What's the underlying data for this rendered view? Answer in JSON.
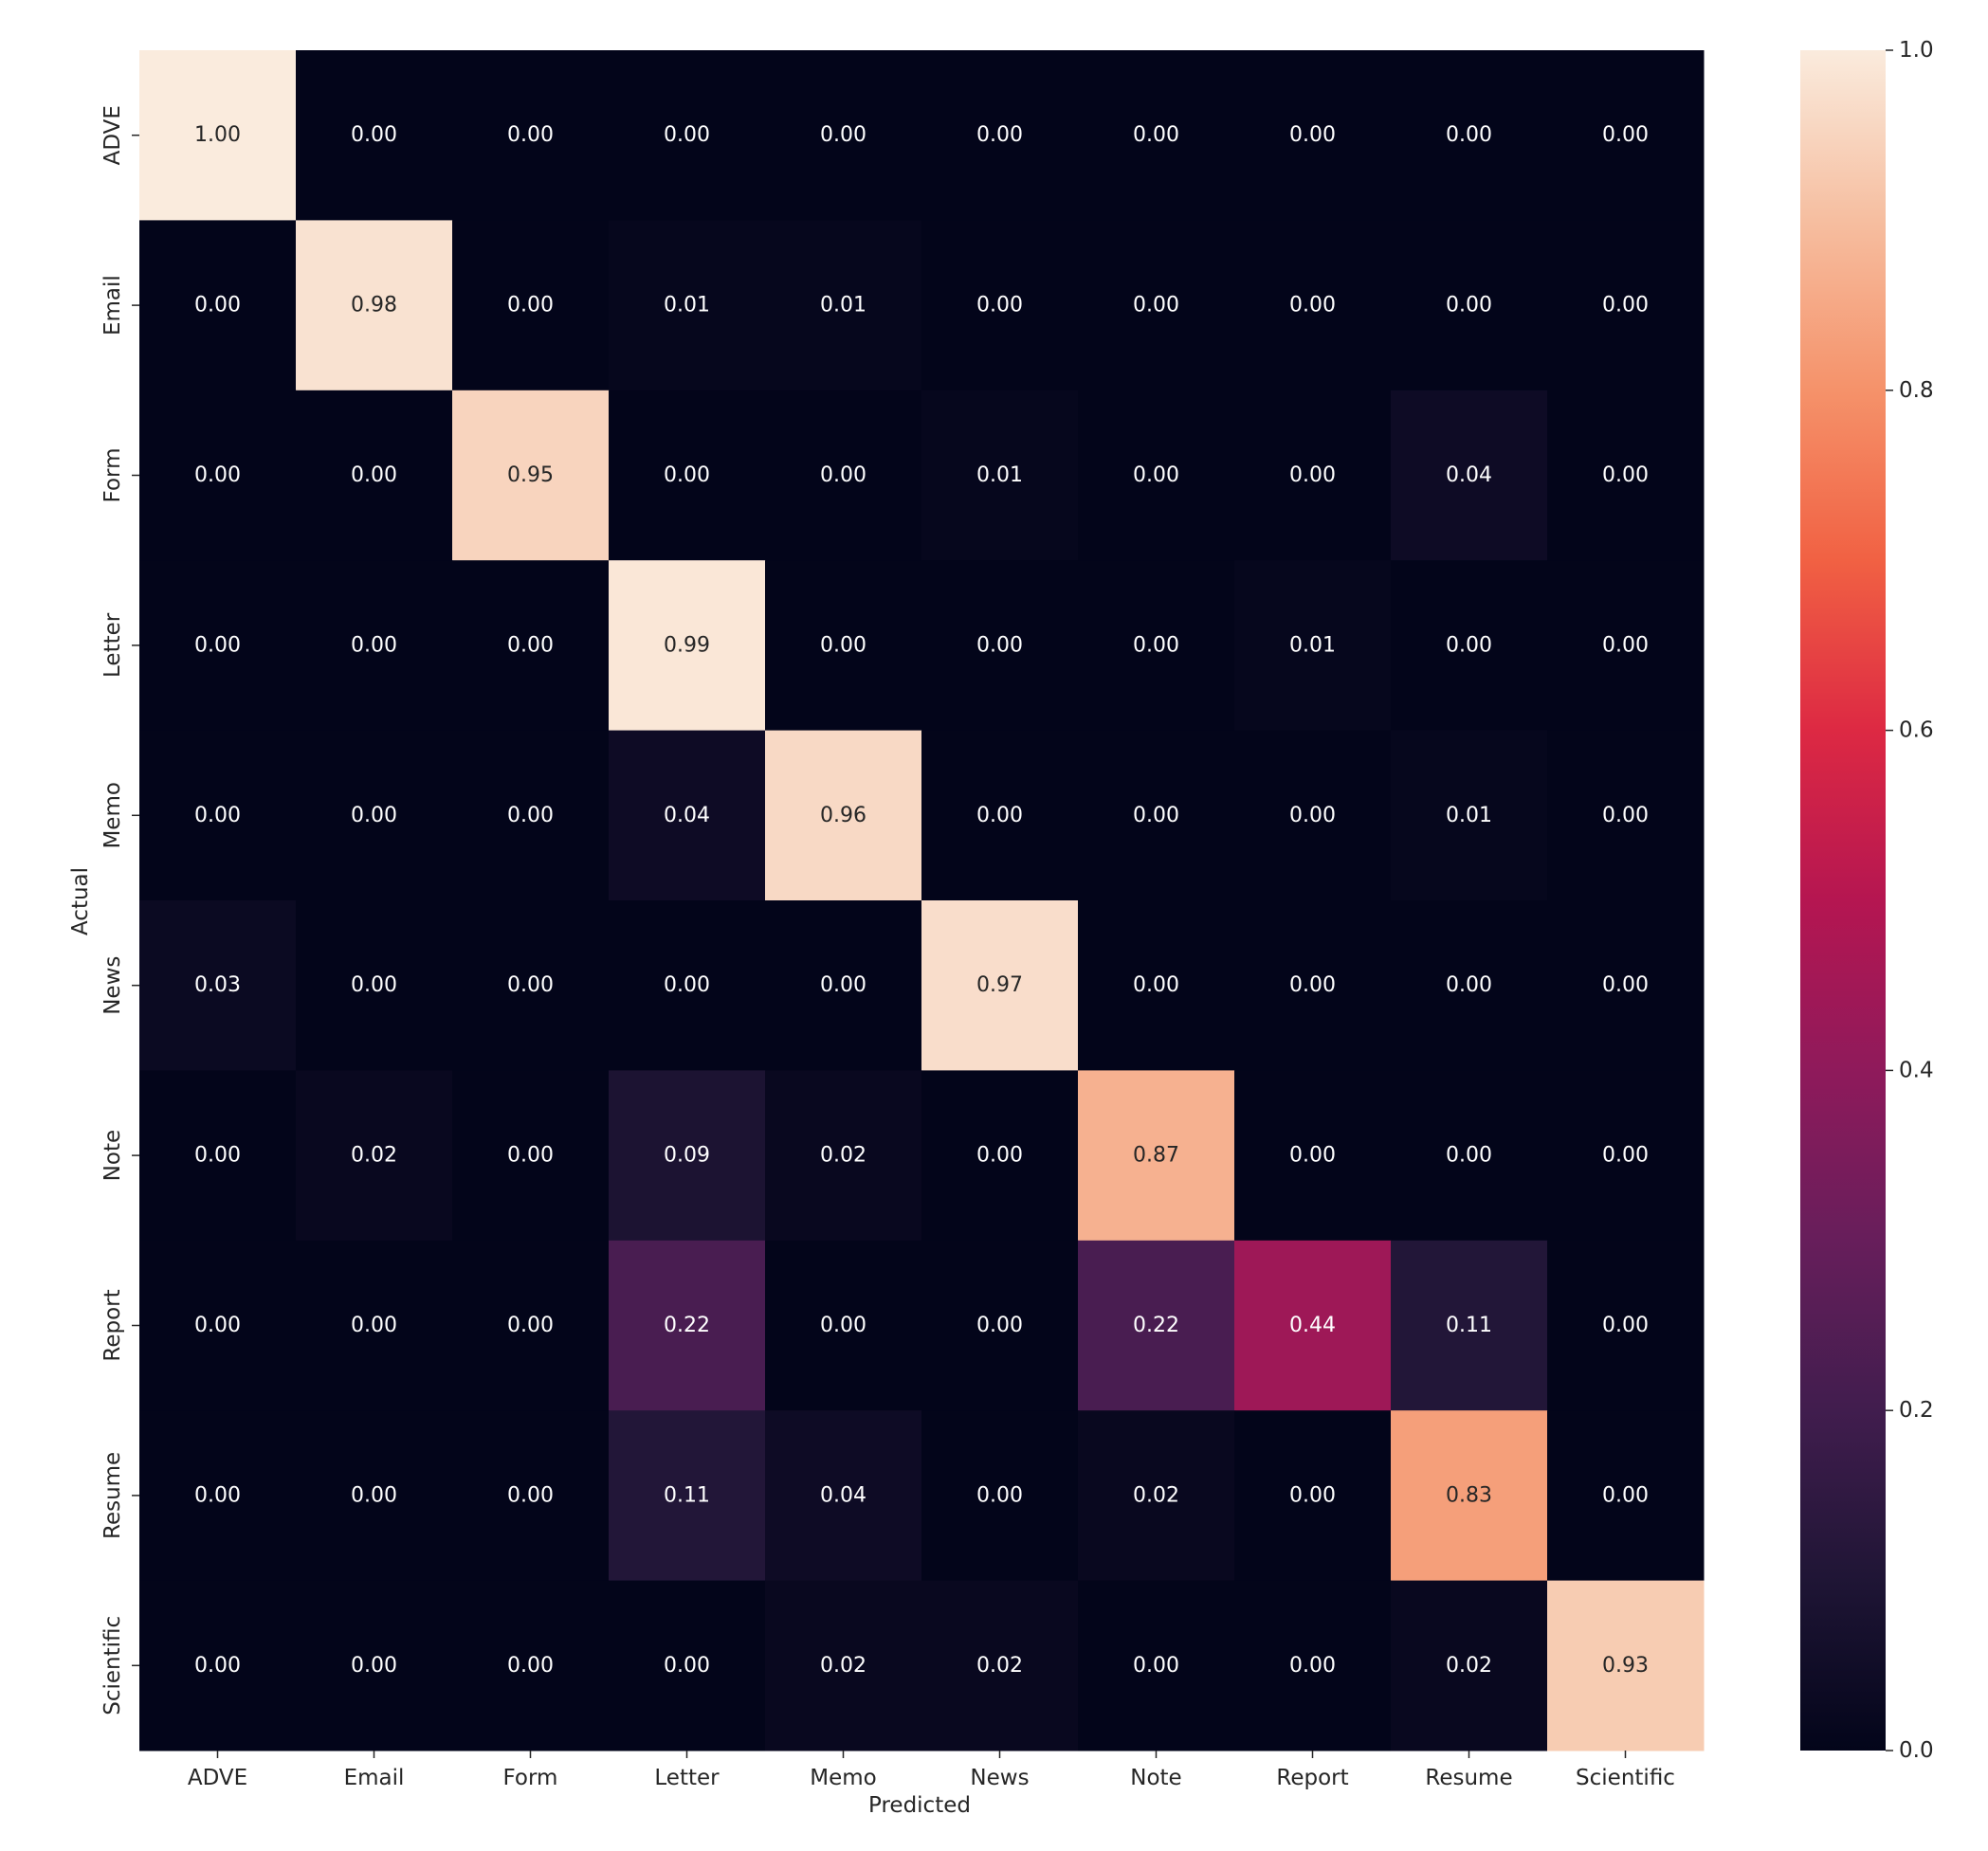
{
  "chart_data": {
    "type": "heatmap",
    "title": "",
    "xlabel": "Predicted",
    "ylabel": "Actual",
    "x_categories": [
      "ADVE",
      "Email",
      "Form",
      "Letter",
      "Memo",
      "News",
      "Note",
      "Report",
      "Resume",
      "Scientific"
    ],
    "y_categories": [
      "ADVE",
      "Email",
      "Form",
      "Letter",
      "Memo",
      "News",
      "Note",
      "Report",
      "Resume",
      "Scientific"
    ],
    "values": [
      [
        1.0,
        0.0,
        0.0,
        0.0,
        0.0,
        0.0,
        0.0,
        0.0,
        0.0,
        0.0
      ],
      [
        0.0,
        0.98,
        0.0,
        0.01,
        0.01,
        0.0,
        0.0,
        0.0,
        0.0,
        0.0
      ],
      [
        0.0,
        0.0,
        0.95,
        0.0,
        0.0,
        0.01,
        0.0,
        0.0,
        0.04,
        0.0
      ],
      [
        0.0,
        0.0,
        0.0,
        0.99,
        0.0,
        0.0,
        0.0,
        0.01,
        0.0,
        0.0
      ],
      [
        0.0,
        0.0,
        0.0,
        0.04,
        0.96,
        0.0,
        0.0,
        0.0,
        0.01,
        0.0
      ],
      [
        0.03,
        0.0,
        0.0,
        0.0,
        0.0,
        0.97,
        0.0,
        0.0,
        0.0,
        0.0
      ],
      [
        0.0,
        0.02,
        0.0,
        0.09,
        0.02,
        0.0,
        0.87,
        0.0,
        0.0,
        0.0
      ],
      [
        0.0,
        0.0,
        0.0,
        0.22,
        0.0,
        0.0,
        0.22,
        0.44,
        0.11,
        0.0
      ],
      [
        0.0,
        0.0,
        0.0,
        0.11,
        0.04,
        0.0,
        0.02,
        0.0,
        0.83,
        0.0
      ],
      [
        0.0,
        0.0,
        0.0,
        0.0,
        0.02,
        0.02,
        0.0,
        0.0,
        0.02,
        0.93
      ]
    ],
    "value_format": "0.00",
    "colormap": "rocket",
    "colorbar": {
      "range": [
        0.0,
        1.0
      ],
      "ticks": [
        0.0,
        0.2,
        0.4,
        0.6,
        0.8,
        1.0
      ],
      "tick_labels": [
        "0.0",
        "0.2",
        "0.4",
        "0.6",
        "0.8",
        "1.0"
      ],
      "placement": "right"
    },
    "grid": false
  }
}
